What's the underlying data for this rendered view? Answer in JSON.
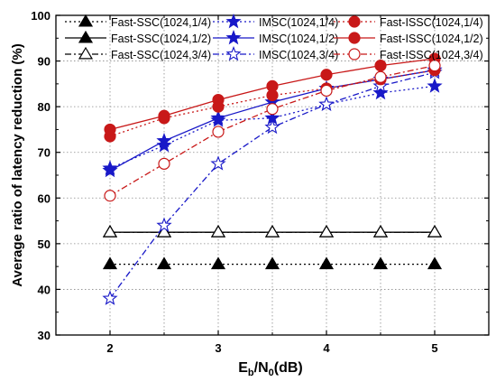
{
  "chart_data": {
    "type": "line",
    "title": "",
    "xlabel": {
      "main": "E",
      "sub1": "b",
      "middle": "/N",
      "sub2": "0",
      "tail": "(dB)"
    },
    "ylabel": "Average ratio of latency reduction (%)",
    "xlim": [
      1.5,
      5.5
    ],
    "ylim": [
      30,
      100
    ],
    "x": [
      2,
      2.5,
      3,
      3.5,
      4,
      4.5,
      5
    ],
    "x_ticks": [
      2,
      3,
      4,
      5
    ],
    "y_ticks": [
      30,
      40,
      50,
      60,
      70,
      80,
      90,
      100
    ],
    "grid": true,
    "legend_position": "top",
    "series": [
      {
        "name": "Fast-SSC(1024,1/4)",
        "values": [
          45.5,
          45.5,
          45.5,
          45.5,
          45.5,
          45.5,
          45.5
        ],
        "color": "#000000",
        "line": "dotted",
        "marker": "triangle-filled"
      },
      {
        "name": "Fast-SSC(1024,1/2)",
        "values": [
          52.5,
          52.5,
          52.5,
          52.5,
          52.5,
          52.5,
          52.5
        ],
        "color": "#000000",
        "line": "solid",
        "marker": "triangle-filled"
      },
      {
        "name": "Fast-SSC(1024,3/4)",
        "values": [
          52.5,
          52.5,
          52.5,
          52.5,
          52.5,
          52.5,
          52.5
        ],
        "color": "#000000",
        "line": "dashdot",
        "marker": "triangle-open"
      },
      {
        "name": "IMSC(1024,1/4)",
        "values": [
          66.5,
          71.5,
          77,
          77.5,
          80.5,
          83,
          84.5
        ],
        "color": "#1818c8",
        "line": "dotted",
        "marker": "star-filled"
      },
      {
        "name": "IMSC(1024,1/2)",
        "values": [
          66,
          72.5,
          77.5,
          81,
          84,
          86,
          88
        ],
        "color": "#1818c8",
        "line": "solid",
        "marker": "star-filled"
      },
      {
        "name": "IMSC(1024,3/4)",
        "values": [
          38,
          54,
          67.5,
          75.5,
          80.5,
          84.5,
          87.5
        ],
        "color": "#1818c8",
        "line": "dashdot",
        "marker": "star-open"
      },
      {
        "name": "Fast-ISSC(1024,1/4)",
        "values": [
          73.5,
          77.5,
          80,
          82.5,
          84,
          86,
          88
        ],
        "color": "#c81818",
        "line": "dotted",
        "marker": "circle-filled"
      },
      {
        "name": "Fast-ISSC(1024,1/2)",
        "values": [
          75,
          78,
          81.5,
          84.5,
          87,
          89,
          90.5
        ],
        "color": "#c81818",
        "line": "solid",
        "marker": "circle-filled"
      },
      {
        "name": "Fast-ISSC(1024,3/4)",
        "values": [
          60.5,
          67.5,
          74.5,
          79.5,
          83.5,
          86.5,
          89
        ],
        "color": "#c81818",
        "line": "dashdot",
        "marker": "circle-open"
      }
    ]
  }
}
